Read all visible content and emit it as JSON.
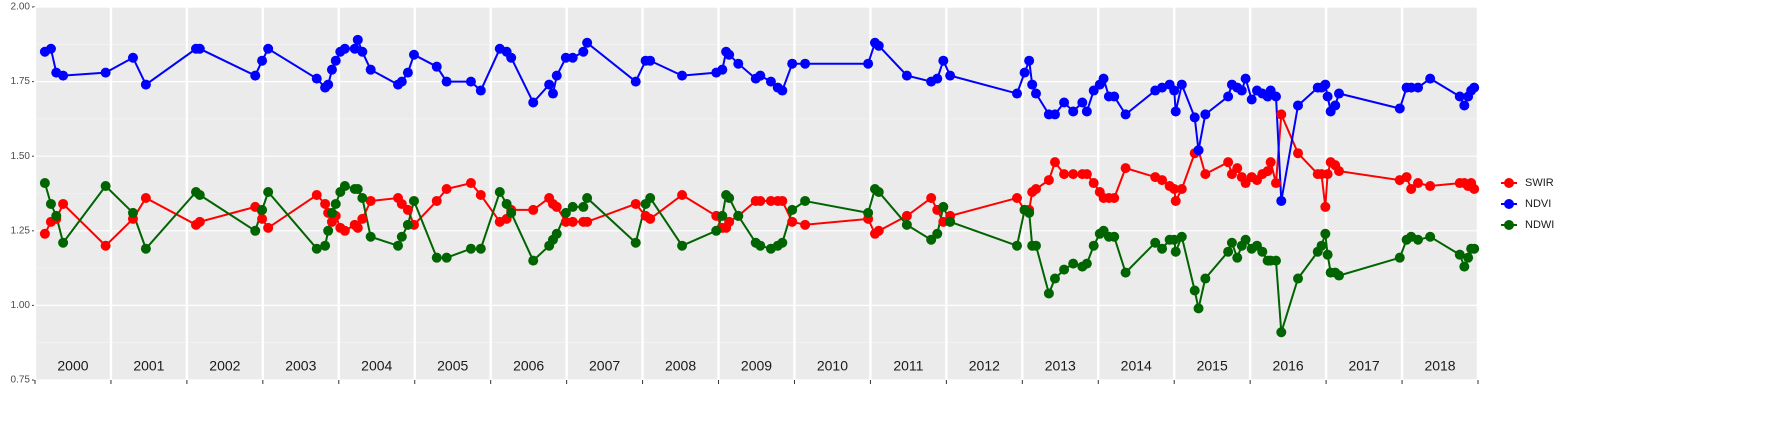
{
  "chart_data": {
    "type": "line",
    "x": [
      2000.13,
      2000.21,
      2000.28,
      2000.37,
      2000.93,
      2001.29,
      2001.46,
      2002.12,
      2002.17,
      2002.9,
      2002.99,
      2003.07,
      2003.71,
      2003.82,
      2003.86,
      2003.91,
      2003.96,
      2004.02,
      2004.08,
      2004.21,
      2004.25,
      2004.31,
      2004.42,
      2004.78,
      2004.83,
      2004.91,
      2004.99,
      2005.29,
      2005.42,
      2005.74,
      2005.87,
      2006.12,
      2006.21,
      2006.27,
      2006.56,
      2006.77,
      2006.82,
      2006.87,
      2006.99,
      2007.08,
      2007.22,
      2007.27,
      2007.91,
      2008.04,
      2008.1,
      2008.52,
      2008.97,
      2009.05,
      2009.1,
      2009.14,
      2009.26,
      2009.49,
      2009.55,
      2009.69,
      2009.78,
      2009.84,
      2009.97,
      2010.14,
      2010.97,
      2011.06,
      2011.11,
      2011.48,
      2011.8,
      2011.88,
      2011.96,
      2012.05,
      2012.93,
      2013.03,
      2013.09,
      2013.13,
      2013.18,
      2013.35,
      2013.43,
      2013.55,
      2013.67,
      2013.79,
      2013.85,
      2013.94,
      2014.02,
      2014.07,
      2014.14,
      2014.21,
      2014.36,
      2014.75,
      2014.84,
      2014.94,
      2015.0,
      2015.02,
      2015.1,
      2015.27,
      2015.32,
      2015.41,
      2015.71,
      2015.76,
      2015.83,
      2015.89,
      2015.94,
      2016.02,
      2016.09,
      2016.16,
      2016.23,
      2016.27,
      2016.34,
      2016.41,
      2016.63,
      2016.89,
      2016.94,
      2016.99,
      2017.02,
      2017.06,
      2017.12,
      2017.17,
      2017.97,
      2018.06,
      2018.12,
      2018.21,
      2018.37,
      2018.76,
      2018.82,
      2018.87,
      2018.91,
      2018.95
    ],
    "series": [
      {
        "name": "SWIR",
        "color": "#ff0000",
        "values": [
          1.24,
          1.28,
          1.29,
          1.34,
          1.2,
          1.29,
          1.36,
          1.27,
          1.28,
          1.33,
          1.29,
          1.26,
          1.37,
          1.34,
          1.31,
          1.28,
          1.3,
          1.26,
          1.25,
          1.27,
          1.26,
          1.29,
          1.35,
          1.36,
          1.34,
          1.32,
          1.27,
          1.35,
          1.39,
          1.41,
          1.37,
          1.28,
          1.29,
          1.32,
          1.32,
          1.36,
          1.34,
          1.33,
          1.28,
          1.28,
          1.28,
          1.28,
          1.34,
          1.3,
          1.29,
          1.37,
          1.3,
          1.26,
          1.26,
          1.28,
          1.3,
          1.35,
          1.35,
          1.35,
          1.35,
          1.35,
          1.28,
          1.27,
          1.29,
          1.24,
          1.25,
          1.3,
          1.36,
          1.32,
          1.28,
          1.3,
          1.36,
          1.32,
          1.32,
          1.38,
          1.39,
          1.42,
          1.48,
          1.44,
          1.44,
          1.44,
          1.44,
          1.41,
          1.38,
          1.36,
          1.36,
          1.36,
          1.46,
          1.43,
          1.42,
          1.4,
          1.39,
          1.35,
          1.39,
          1.51,
          1.52,
          1.44,
          1.48,
          1.44,
          1.46,
          1.43,
          1.41,
          1.43,
          1.42,
          1.44,
          1.45,
          1.48,
          1.41,
          1.64,
          1.51,
          1.44,
          1.44,
          1.33,
          1.44,
          1.48,
          1.47,
          1.45,
          1.42,
          1.43,
          1.39,
          1.41,
          1.4,
          1.41,
          1.41,
          1.4,
          1.41,
          1.39
        ]
      },
      {
        "name": "NDVI",
        "color": "#0000ff",
        "values": [
          1.85,
          1.86,
          1.78,
          1.77,
          1.78,
          1.83,
          1.74,
          1.86,
          1.86,
          1.77,
          1.82,
          1.86,
          1.76,
          1.73,
          1.74,
          1.79,
          1.82,
          1.85,
          1.86,
          1.86,
          1.89,
          1.85,
          1.79,
          1.74,
          1.75,
          1.78,
          1.84,
          1.8,
          1.75,
          1.75,
          1.72,
          1.86,
          1.85,
          1.83,
          1.68,
          1.74,
          1.71,
          1.77,
          1.83,
          1.83,
          1.85,
          1.88,
          1.75,
          1.82,
          1.82,
          1.77,
          1.78,
          1.79,
          1.85,
          1.84,
          1.81,
          1.76,
          1.77,
          1.75,
          1.73,
          1.72,
          1.81,
          1.81,
          1.81,
          1.88,
          1.87,
          1.77,
          1.75,
          1.76,
          1.82,
          1.77,
          1.71,
          1.78,
          1.82,
          1.74,
          1.71,
          1.64,
          1.64,
          1.68,
          1.65,
          1.68,
          1.65,
          1.72,
          1.74,
          1.76,
          1.7,
          1.7,
          1.64,
          1.72,
          1.73,
          1.74,
          1.72,
          1.65,
          1.74,
          1.63,
          1.52,
          1.64,
          1.7,
          1.74,
          1.73,
          1.72,
          1.76,
          1.69,
          1.72,
          1.71,
          1.7,
          1.72,
          1.7,
          1.35,
          1.67,
          1.73,
          1.73,
          1.74,
          1.7,
          1.65,
          1.67,
          1.71,
          1.66,
          1.73,
          1.73,
          1.73,
          1.76,
          1.7,
          1.67,
          1.7,
          1.72,
          1.73
        ]
      },
      {
        "name": "NDWI",
        "color": "#006400",
        "values": [
          1.41,
          1.34,
          1.3,
          1.21,
          1.4,
          1.31,
          1.19,
          1.38,
          1.37,
          1.25,
          1.32,
          1.38,
          1.19,
          1.2,
          1.25,
          1.31,
          1.34,
          1.38,
          1.4,
          1.39,
          1.39,
          1.36,
          1.23,
          1.2,
          1.23,
          1.27,
          1.35,
          1.16,
          1.16,
          1.19,
          1.19,
          1.38,
          1.34,
          1.31,
          1.15,
          1.2,
          1.22,
          1.24,
          1.31,
          1.33,
          1.33,
          1.36,
          1.21,
          1.34,
          1.36,
          1.2,
          1.25,
          1.3,
          1.37,
          1.36,
          1.3,
          1.21,
          1.2,
          1.19,
          1.2,
          1.21,
          1.32,
          1.35,
          1.31,
          1.39,
          1.38,
          1.27,
          1.22,
          1.24,
          1.33,
          1.28,
          1.2,
          1.32,
          1.31,
          1.2,
          1.2,
          1.04,
          1.09,
          1.12,
          1.14,
          1.13,
          1.14,
          1.2,
          1.24,
          1.25,
          1.23,
          1.23,
          1.11,
          1.21,
          1.19,
          1.22,
          1.22,
          1.18,
          1.23,
          1.05,
          0.99,
          1.09,
          1.18,
          1.21,
          1.16,
          1.2,
          1.22,
          1.19,
          1.2,
          1.18,
          1.15,
          1.15,
          1.15,
          0.91,
          1.09,
          1.18,
          1.2,
          1.24,
          1.17,
          1.11,
          1.11,
          1.1,
          1.16,
          1.22,
          1.23,
          1.22,
          1.23,
          1.17,
          1.13,
          1.16,
          1.19,
          1.19
        ]
      }
    ],
    "xlim": [
      2000,
      2019
    ],
    "xticks": [
      2000,
      2001,
      2002,
      2003,
      2004,
      2005,
      2006,
      2007,
      2008,
      2009,
      2010,
      2011,
      2012,
      2013,
      2014,
      2015,
      2016,
      2017,
      2018,
      2019
    ],
    "year_labels": [
      2000,
      2001,
      2002,
      2003,
      2004,
      2005,
      2006,
      2007,
      2008,
      2009,
      2010,
      2011,
      2012,
      2013,
      2014,
      2015,
      2016,
      2017,
      2018
    ],
    "ylim": [
      0.75,
      2.0
    ],
    "yticks": [
      0.75,
      {
        "value": 1.0,
        "label": "1.00"
      },
      1.25,
      {
        "value": 1.5,
        "label": "1.50"
      },
      1.75,
      {
        "value": 2.0,
        "label": "2.00"
      }
    ],
    "grid": true,
    "legend": "right"
  }
}
